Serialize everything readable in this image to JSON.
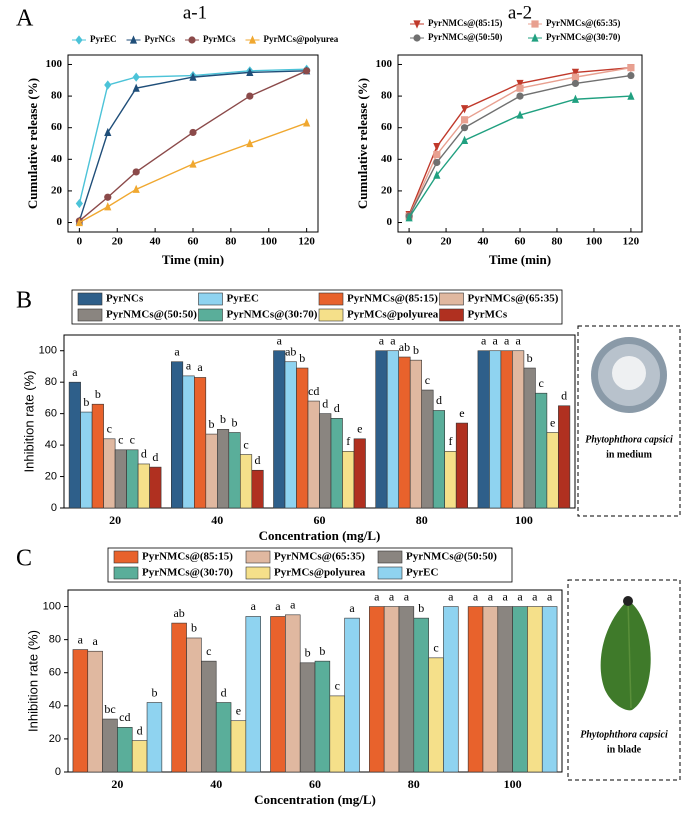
{
  "chart_data": [
    {
      "type": "line",
      "panel_label": "A",
      "title": "a-1",
      "xlabel": "Time (min)",
      "ylabel": "Cumulative release (%)",
      "x": [
        0,
        15,
        30,
        60,
        90,
        120
      ],
      "xlim": [
        -6,
        126
      ],
      "xticks": [
        0,
        20,
        40,
        60,
        80,
        100,
        120
      ],
      "ylim": [
        -6,
        106
      ],
      "yticks": [
        0,
        20,
        40,
        60,
        80,
        100
      ],
      "legend": "top",
      "series": [
        {
          "name": "PyrEC",
          "color": "#4cc3d8",
          "marker": "diamond",
          "values": [
            12,
            87,
            92,
            93,
            96,
            97
          ]
        },
        {
          "name": "PyrNCs",
          "color": "#1f4e79",
          "marker": "triangle",
          "values": [
            1,
            57,
            85,
            92,
            95,
            96
          ]
        },
        {
          "name": "PyrMCs",
          "color": "#8b4a4a",
          "marker": "circle",
          "values": [
            1,
            16,
            32,
            57,
            80,
            96
          ]
        },
        {
          "name": "PyrMCs@polyurea",
          "color": "#f0a830",
          "marker": "triangle",
          "values": [
            0,
            10,
            21,
            37,
            50,
            63
          ]
        }
      ]
    },
    {
      "type": "line",
      "title": "a-2",
      "xlabel": "Time (min)",
      "ylabel": "Cumulative release (%)",
      "x": [
        0,
        15,
        30,
        60,
        90,
        120
      ],
      "xlim": [
        -6,
        126
      ],
      "xticks": [
        0,
        20,
        40,
        60,
        80,
        100,
        120
      ],
      "ylim": [
        -6,
        106
      ],
      "yticks": [
        0,
        20,
        40,
        60,
        80,
        100
      ],
      "legend": "top",
      "series": [
        {
          "name": "PyrNMCs@(85:15)",
          "color": "#c0392b",
          "marker": "triangle-down",
          "values": [
            5,
            48,
            72,
            88,
            95,
            98
          ]
        },
        {
          "name": "PyrNMCs@(65:35)",
          "color": "#e8a090",
          "marker": "square",
          "values": [
            4,
            43,
            65,
            85,
            92,
            98
          ]
        },
        {
          "name": "PyrNMCs@(50:50)",
          "color": "#707070",
          "marker": "circle",
          "values": [
            4,
            38,
            60,
            80,
            88,
            93
          ]
        },
        {
          "name": "PyrNMCs@(30:70)",
          "color": "#20a080",
          "marker": "triangle",
          "values": [
            3,
            30,
            52,
            68,
            78,
            80
          ]
        }
      ]
    },
    {
      "type": "bar",
      "panel_label": "B",
      "xlabel": "Concentration (mg/L)",
      "ylabel": "Inhibition rate (%)",
      "categories": [
        "20",
        "40",
        "60",
        "80",
        "100"
      ],
      "ylim": [
        0,
        110
      ],
      "yticks": [
        0,
        20,
        40,
        60,
        80,
        100
      ],
      "legend": "top",
      "inset": {
        "species": "Phytophthora capsici",
        "caption": "in medium"
      },
      "series": [
        {
          "name": "PyrNCs",
          "color": "#2e5f8a",
          "values": [
            80,
            93,
            100,
            100,
            100
          ],
          "letters": [
            "a",
            "a",
            "a",
            "a",
            "a"
          ]
        },
        {
          "name": "PyrEC",
          "color": "#8fd3f0",
          "values": [
            61,
            84,
            93,
            100,
            100
          ],
          "letters": [
            "b",
            "a",
            "ab",
            "a",
            "a"
          ]
        },
        {
          "name": "PyrNMCs@(85:15)",
          "color": "#e8622c",
          "values": [
            66,
            83,
            89,
            96,
            100
          ],
          "letters": [
            "b",
            "a",
            "b",
            "ab",
            "a"
          ]
        },
        {
          "name": "PyrNMCs@(65:35)",
          "color": "#e0b8a0",
          "values": [
            44,
            47,
            68,
            94,
            100
          ],
          "letters": [
            "c",
            "b",
            "cd",
            "b",
            "a"
          ]
        },
        {
          "name": "PyrNMCs@(50:50)",
          "color": "#8a8580",
          "values": [
            37,
            50,
            60,
            75,
            89
          ],
          "letters": [
            "c",
            "b",
            "d",
            "c",
            "b"
          ]
        },
        {
          "name": "PyrNMCs@(30:70)",
          "color": "#5aae9a",
          "values": [
            37,
            48,
            57,
            62,
            73
          ],
          "letters": [
            "c",
            "b",
            "d",
            "d",
            "c"
          ]
        },
        {
          "name": "PyrMCs@polyurea",
          "color": "#f5e08a",
          "values": [
            28,
            34,
            36,
            36,
            48
          ],
          "letters": [
            "d",
            "c",
            "f",
            "f",
            "e"
          ]
        },
        {
          "name": "PyrMCs",
          "color": "#b03020",
          "values": [
            26,
            24,
            44,
            54,
            65
          ],
          "letters": [
            "d",
            "d",
            "e",
            "e",
            "d"
          ]
        }
      ]
    },
    {
      "type": "bar",
      "panel_label": "C",
      "xlabel": "Concentration (mg/L)",
      "ylabel": "Inhibition rate (%)",
      "categories": [
        "20",
        "40",
        "60",
        "80",
        "100"
      ],
      "ylim": [
        0,
        110
      ],
      "yticks": [
        0,
        20,
        40,
        60,
        80,
        100
      ],
      "legend": "top",
      "inset": {
        "species": "Phytophthora capsici",
        "caption": "in blade"
      },
      "series": [
        {
          "name": "PyrNMCs@(85:15)",
          "color": "#e8622c",
          "values": [
            74,
            90,
            94,
            100,
            100
          ],
          "letters": [
            "a",
            "ab",
            "a",
            "a",
            "a"
          ]
        },
        {
          "name": "PyrNMCs@(65:35)",
          "color": "#e0b8a0",
          "values": [
            73,
            81,
            95,
            100,
            100
          ],
          "letters": [
            "a",
            "b",
            "a",
            "a",
            "a"
          ]
        },
        {
          "name": "PyrNMCs@(50:50)",
          "color": "#8a8580",
          "values": [
            32,
            67,
            66,
            100,
            100
          ],
          "letters": [
            "bc",
            "c",
            "b",
            "a",
            "a"
          ]
        },
        {
          "name": "PyrNMCs@(30:70)",
          "color": "#5aae9a",
          "values": [
            27,
            42,
            67,
            93,
            100
          ],
          "letters": [
            "cd",
            "d",
            "b",
            "b",
            "a"
          ]
        },
        {
          "name": "PyrMCs@polyurea",
          "color": "#f5e08a",
          "values": [
            19,
            31,
            46,
            69,
            100
          ],
          "letters": [
            "d",
            "e",
            "c",
            "c",
            "a"
          ]
        },
        {
          "name": "PyrEC",
          "color": "#8fd3f0",
          "values": [
            42,
            94,
            93,
            100,
            100
          ],
          "letters": [
            "b",
            "a",
            "a",
            "a",
            "a"
          ]
        }
      ]
    }
  ]
}
